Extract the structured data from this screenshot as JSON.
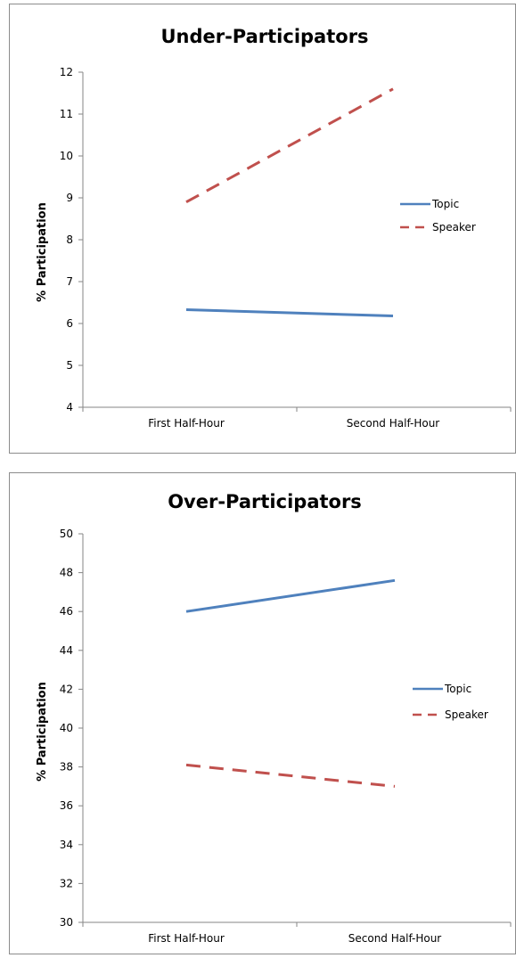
{
  "chart_data": [
    {
      "type": "line",
      "title": "Under-Participators",
      "xlabel": "",
      "ylabel": "% Participation",
      "categories": [
        "First Half-Hour",
        "Second Half-Hour"
      ],
      "ylim": [
        4,
        12
      ],
      "yticks": [
        4,
        5,
        6,
        7,
        8,
        9,
        10,
        11,
        12
      ],
      "grid": false,
      "legend_position": "right",
      "series": [
        {
          "name": "Topic",
          "values": [
            6.33,
            6.18
          ],
          "color": "#4f81bd",
          "dashed": false
        },
        {
          "name": "Speaker",
          "values": [
            8.9,
            11.6
          ],
          "color": "#c0504d",
          "dashed": true
        }
      ]
    },
    {
      "type": "line",
      "title": "Over-Participators",
      "xlabel": "",
      "ylabel": "% Participation",
      "categories": [
        "First Half-Hour",
        "Second Half-Hour"
      ],
      "ylim": [
        30,
        50
      ],
      "yticks": [
        30,
        32,
        34,
        36,
        38,
        40,
        42,
        44,
        46,
        48,
        50
      ],
      "grid": false,
      "legend_position": "right",
      "series": [
        {
          "name": "Topic",
          "values": [
            46.0,
            47.6
          ],
          "color": "#4f81bd",
          "dashed": false
        },
        {
          "name": "Speaker",
          "values": [
            38.1,
            37.0
          ],
          "color": "#c0504d",
          "dashed": true
        }
      ]
    }
  ]
}
